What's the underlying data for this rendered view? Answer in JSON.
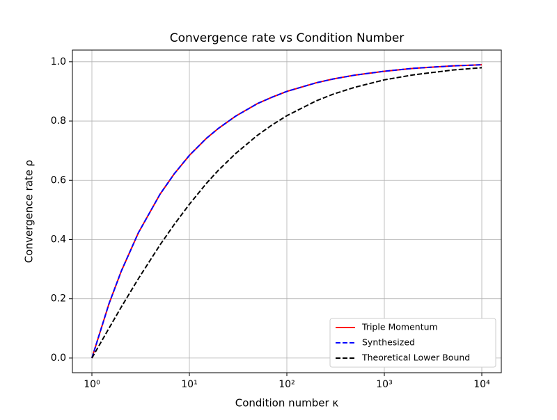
{
  "chart_data": {
    "type": "line",
    "title": "Convergence rate vs Condition Number",
    "xlabel": "Condition number κ",
    "ylabel": "Convergence rate ρ",
    "x": [
      1,
      1.5,
      2,
      3,
      5,
      7,
      10,
      15,
      20,
      30,
      50,
      70,
      100,
      200,
      300,
      500,
      1000,
      2000,
      5000,
      10000
    ],
    "series": [
      {
        "name": "Triple Momentum",
        "color": "#ff0000",
        "linestyle": "solid",
        "values": [
          0,
          0.184,
          0.293,
          0.423,
          0.553,
          0.622,
          0.684,
          0.742,
          0.776,
          0.817,
          0.859,
          0.88,
          0.9,
          0.929,
          0.942,
          0.955,
          0.968,
          0.978,
          0.986,
          0.99
        ]
      },
      {
        "name": "Synthesized",
        "color": "#0000ff",
        "linestyle": "dashed",
        "values": [
          0,
          0.184,
          0.293,
          0.423,
          0.553,
          0.622,
          0.684,
          0.742,
          0.776,
          0.817,
          0.859,
          0.88,
          0.9,
          0.929,
          0.942,
          0.955,
          0.968,
          0.978,
          0.986,
          0.99
        ]
      },
      {
        "name": "Theoretical Lower Bound",
        "color": "#000000",
        "linestyle": "dashed",
        "values": [
          0,
          0.101,
          0.172,
          0.268,
          0.382,
          0.451,
          0.519,
          0.59,
          0.635,
          0.691,
          0.752,
          0.786,
          0.818,
          0.868,
          0.891,
          0.914,
          0.939,
          0.956,
          0.972,
          0.98
        ]
      }
    ],
    "xscale": "log",
    "xlim": [
      0.631,
      15849
    ],
    "xticks": [
      {
        "value": 1,
        "label": "10⁰"
      },
      {
        "value": 10,
        "label": "10¹"
      },
      {
        "value": 100,
        "label": "10²"
      },
      {
        "value": 1000,
        "label": "10³"
      },
      {
        "value": 10000,
        "label": "10⁴"
      }
    ],
    "ylim": [
      -0.0495,
      1.0395
    ],
    "yticks": [
      {
        "value": 0,
        "label": "0.0"
      },
      0.2,
      0.4,
      0.6,
      0.8,
      {
        "value": 1,
        "label": "1.0"
      }
    ],
    "grid": true,
    "legend": "lower right"
  }
}
